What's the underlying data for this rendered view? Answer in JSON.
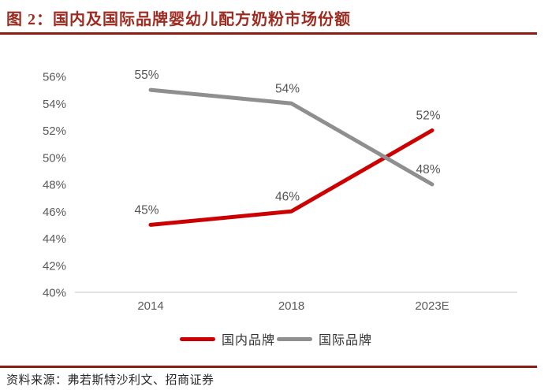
{
  "header": {
    "title": "图 2：国内及国际品牌婴幼儿配方奶粉市场份额"
  },
  "footer": {
    "source": "资料来源：弗若斯特沙利文、招商证券"
  },
  "colors": {
    "title_red": "#9E2A20",
    "rule_red": "#8B1D12",
    "series_domestic_red": "#CC0000",
    "series_international_gray": "#8F8F8F",
    "axis_text_gray": "#595959",
    "data_label_gray": "#555555",
    "baseline_gray": "#D9D9D9"
  },
  "chart_data": {
    "type": "line",
    "title": "国内及国际品牌婴幼儿配方奶粉市场份额",
    "categories": [
      "2014",
      "2018",
      "2023E"
    ],
    "series": [
      {
        "name": "国内品牌",
        "key": "domestic",
        "color": "#CC0000",
        "values": [
          45,
          46,
          52
        ],
        "labels": [
          "45%",
          "46%",
          "52%"
        ]
      },
      {
        "name": "国际品牌",
        "key": "international",
        "color": "#8F8F8F",
        "values": [
          55,
          54,
          48
        ],
        "labels": [
          "55%",
          "54%",
          "48%"
        ]
      }
    ],
    "xlabel": "",
    "ylabel": "",
    "ylim": [
      40,
      56
    ],
    "ytick_step": 2,
    "yticks": [
      "40%",
      "42%",
      "44%",
      "46%",
      "48%",
      "50%",
      "52%",
      "54%",
      "56%"
    ],
    "grid": false,
    "legend_position": "bottom"
  }
}
